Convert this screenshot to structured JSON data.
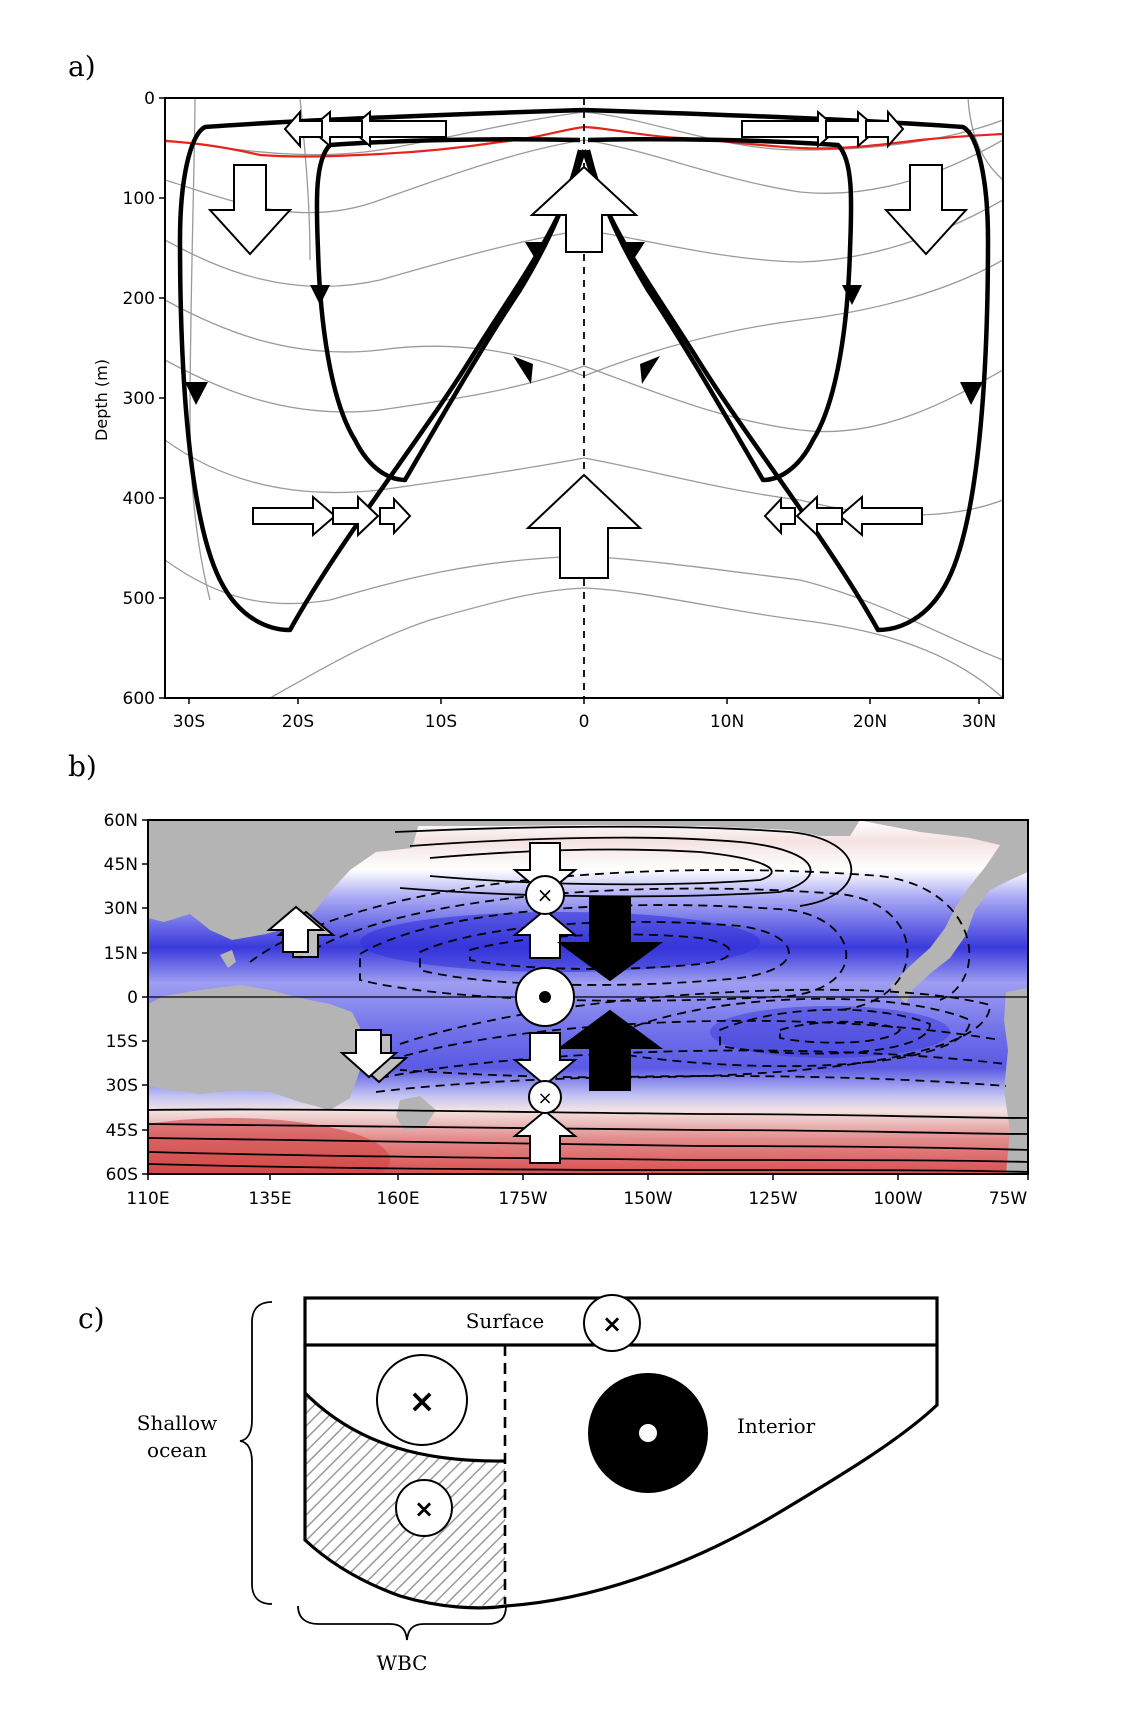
{
  "panel_a": {
    "label": "a)",
    "ylabel": "Depth (m)",
    "y_ticks": [
      "0",
      "100",
      "200",
      "300",
      "400",
      "500",
      "600"
    ],
    "x_ticks": [
      "30S",
      "20S",
      "10S",
      "0",
      "10N",
      "20N",
      "30N"
    ]
  },
  "panel_b": {
    "label": "b)",
    "y_ticks": [
      "60N",
      "45N",
      "30N",
      "15N",
      "0",
      "15S",
      "30S",
      "45S",
      "60S"
    ],
    "x_ticks": [
      "110E",
      "135E",
      "160E",
      "175W",
      "150W",
      "125W",
      "100W",
      "75W"
    ]
  },
  "panel_c": {
    "label": "c)",
    "surface": "Surface",
    "interior": "Interior",
    "shallow_line1": "Shallow",
    "shallow_line2": "ocean",
    "wbc": "WBC"
  },
  "colors": {
    "mld_line": "#e8231a",
    "negative": "#3d3ddc",
    "positive": "#d94848",
    "land": "#b4b4b4"
  }
}
